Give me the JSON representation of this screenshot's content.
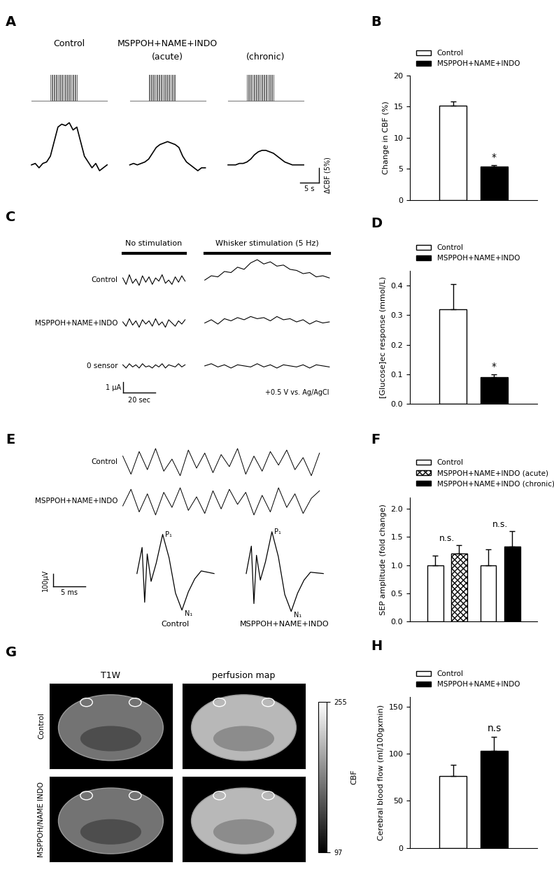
{
  "chart_data": [
    {
      "panel": "A",
      "type": "line",
      "tick_labels": false,
      "color": "#000000",
      "x": [
        0,
        1,
        2,
        3,
        4,
        5,
        6,
        7,
        8,
        9,
        10,
        11,
        12,
        13,
        14,
        15,
        16,
        17,
        18,
        19,
        20
      ],
      "group_title": "MSPPOH+NAME+INDO",
      "series": [
        {
          "name": "Control",
          "stimulus": [
            5,
            12
          ],
          "values": [
            0,
            0.5,
            -1,
            0.5,
            1,
            3,
            8,
            13,
            14,
            13.5,
            14.5,
            12,
            13,
            8,
            3,
            1,
            -1,
            0.5,
            -2,
            -1,
            0
          ]
        },
        {
          "name": "(acute)",
          "stimulus": [
            5,
            12
          ],
          "values": [
            0,
            0.5,
            0,
            0.5,
            1,
            2,
            4,
            6,
            7,
            7.5,
            8,
            7.5,
            7,
            6,
            3,
            1,
            0,
            -1,
            -2,
            -1,
            -1
          ]
        },
        {
          "name": "(chronic)",
          "stimulus": [
            5,
            12
          ],
          "values": [
            0,
            0,
            0,
            0.5,
            0.5,
            1,
            2,
            3.5,
            4.5,
            5,
            5,
            4.5,
            4,
            3,
            2,
            1,
            0.5,
            0,
            0,
            0,
            0
          ]
        }
      ],
      "scale_bar": {
        "x": 5,
        "y": 5,
        "x_label": "5 s",
        "y_label": "ΔCBF (5%)"
      }
    },
    {
      "panel": "B",
      "type": "bar",
      "ylabel": "Change in CBF (%)",
      "ylim": [
        0,
        20
      ],
      "yticks": [
        0,
        5,
        10,
        15,
        20
      ],
      "tick_labels": "y",
      "legend": "upper left",
      "series": [
        {
          "name": "Control",
          "color": "#ffffff",
          "values": [
            15.2
          ],
          "errors": [
            0.6
          ]
        },
        {
          "name": "MSPPOH+NAME+INDO",
          "color": "#000000",
          "values": [
            5.3
          ],
          "errors": [
            0.3
          ]
        }
      ],
      "annotations": [
        {
          "series": "MSPPOH+NAME+INDO",
          "text": "*"
        }
      ]
    },
    {
      "panel": "C",
      "type": "line",
      "tick_labels": false,
      "columns": [
        {
          "title": "No stimulation",
          "x": [
            0,
            2,
            4,
            6,
            8,
            10,
            12,
            14,
            16,
            18,
            20,
            22,
            24,
            26,
            28,
            30,
            32,
            34,
            36,
            38
          ]
        },
        {
          "title": "Whisker stimulation (5 Hz)",
          "x": [
            0,
            4,
            8,
            12,
            16,
            20,
            24,
            28,
            32,
            36,
            40,
            44,
            48,
            52,
            56,
            60,
            64,
            68,
            72,
            76
          ]
        }
      ],
      "series": [
        {
          "name": "Control",
          "values": [
            [
              0.2,
              -0.4,
              0.5,
              -0.3,
              0.1,
              -0.5,
              0.4,
              -0.2,
              0.3,
              -0.4,
              0.2,
              -0.1,
              0.5,
              -0.3,
              0.0,
              -0.4,
              0.3,
              -0.2,
              0.4,
              -0.1
            ],
            [
              0.0,
              0.4,
              0.3,
              0.8,
              0.7,
              1.2,
              1.0,
              1.6,
              1.9,
              1.5,
              1.7,
              1.3,
              1.4,
              1.0,
              0.9,
              0.6,
              0.7,
              0.3,
              0.4,
              0.2
            ]
          ]
        },
        {
          "name": "MSPPOH+NAME+INDO",
          "values": [
            [
              0.1,
              -0.3,
              0.4,
              -0.2,
              0.2,
              -0.4,
              0.3,
              -0.1,
              0.2,
              -0.3,
              0.4,
              -0.2,
              0.1,
              -0.4,
              0.3,
              0.0,
              -0.3,
              0.2,
              -0.1,
              0.3
            ],
            [
              0.0,
              0.3,
              -0.1,
              0.4,
              0.2,
              0.5,
              0.3,
              0.6,
              0.4,
              0.5,
              0.2,
              0.6,
              0.3,
              0.4,
              0.1,
              0.3,
              -0.1,
              0.2,
              0.0,
              0.1
            ]
          ]
        },
        {
          "name": "0 sensor",
          "values": [
            [
              0.1,
              -0.2,
              0.2,
              -0.1,
              0.1,
              -0.2,
              0.2,
              -0.1,
              0.0,
              -0.2,
              0.1,
              -0.1,
              0.2,
              -0.2,
              0.1,
              0.0,
              -0.1,
              0.2,
              -0.1,
              0.1
            ],
            [
              0.0,
              0.2,
              -0.1,
              0.1,
              -0.2,
              0.1,
              0.0,
              -0.1,
              0.2,
              -0.1,
              0.1,
              -0.2,
              0.1,
              0.0,
              -0.1,
              0.1,
              -0.2,
              0.1,
              0.0,
              -0.1
            ]
          ]
        }
      ],
      "scale_bar": {
        "x": 20,
        "y": 1,
        "x_label": "20 sec",
        "y_label": "1 µA"
      },
      "annotation": "+0.5 V vs. Ag/AgCl"
    },
    {
      "panel": "D",
      "type": "bar",
      "ylabel": "[Glucose]ec response (mmol/L)",
      "ylim": [
        0,
        0.45
      ],
      "yticks": [
        0.0,
        0.1,
        0.2,
        0.3,
        0.4
      ],
      "tick_labels": "y",
      "legend": "upper left",
      "series": [
        {
          "name": "Control",
          "color": "#ffffff",
          "values": [
            0.32
          ],
          "errors": [
            0.085
          ]
        },
        {
          "name": "MSPPOH+NAME+INDO",
          "color": "#000000",
          "values": [
            0.09
          ],
          "errors": [
            0.01
          ]
        }
      ],
      "annotations": [
        {
          "series": "MSPPOH+NAME+INDO",
          "text": "*"
        }
      ]
    },
    {
      "panel": "E",
      "type": "line",
      "tick_labels": false,
      "series": [
        {
          "name": "Control",
          "values": [
            20,
            -40,
            35,
            -25,
            45,
            -30,
            10,
            -45,
            40,
            -20,
            30,
            -35,
            25,
            -15,
            45,
            -40,
            20,
            -30,
            35,
            -10,
            40,
            -25,
            15,
            -45,
            30
          ]
        },
        {
          "name": "MSPPOH+NAME+INDO",
          "values": [
            -15,
            40,
            -35,
            25,
            -45,
            30,
            -20,
            45,
            -30,
            15,
            -40,
            35,
            -25,
            40,
            -10,
            30,
            -45,
            20,
            -35,
            45,
            -20,
            25,
            -40,
            10,
            35
          ]
        }
      ],
      "sep": {
        "x": [
          0,
          0.8,
          1.2,
          1.6,
          2.2,
          3,
          4,
          5,
          6,
          7,
          8,
          9,
          10,
          12
        ],
        "series": [
          {
            "name": "Control",
            "values": [
              0,
              200,
              -220,
              150,
              -60,
              80,
              300,
              120,
              -150,
              -280,
              -140,
              -40,
              20,
              0
            ]
          },
          {
            "name": "MSPPOH+NAME+INDO",
            "values": [
              0,
              210,
              -230,
              140,
              -50,
              90,
              320,
              130,
              -160,
              -290,
              -150,
              -50,
              10,
              0
            ]
          }
        ],
        "peak_labels": [
          "P₁",
          "N₁"
        ],
        "scale_bar": {
          "x": 5,
          "y": 100,
          "x_label": "5 ms",
          "y_label": "100µV"
        }
      }
    },
    {
      "panel": "F",
      "type": "bar",
      "ylabel": "SEP amplitude (fold change)",
      "ylim": [
        0,
        2.2
      ],
      "yticks": [
        0.0,
        0.5,
        1.0,
        1.5,
        2.0
      ],
      "tick_labels": "y",
      "legend": "upper left",
      "series": [
        {
          "name": "Control",
          "color": "#ffffff",
          "values": [
            1.0,
            1.0
          ],
          "errors": [
            0.17,
            0.28
          ]
        },
        {
          "name": "MSPPOH+NAME+INDO (acute)",
          "color": "#ffffff",
          "values": [
            1.2,
            null
          ],
          "errors": [
            0.15,
            null
          ]
        },
        {
          "name": "MSPPOH+NAME+INDO (chronic)",
          "color": "#000000",
          "values": [
            null,
            1.33
          ],
          "errors": [
            null,
            0.27
          ]
        }
      ],
      "group_annotations": [
        "n.s.",
        "n.s."
      ]
    },
    {
      "panel": "G",
      "type": "image",
      "columns": [
        "T1W",
        "perfusion map"
      ],
      "rows": [
        "Control",
        "MSPPOH/NAME INDO"
      ],
      "colorbar": {
        "label": "CBF",
        "range": [
          97,
          255
        ],
        "ticks": [
          97,
          255
        ]
      }
    },
    {
      "panel": "H",
      "type": "bar",
      "ylabel": "Cerebral blood flow (ml/100gxmin)",
      "ylim": [
        0,
        160
      ],
      "yticks": [
        0,
        50,
        100,
        150
      ],
      "tick_labels": "y",
      "legend": "upper left",
      "series": [
        {
          "name": "Control",
          "color": "#ffffff",
          "values": [
            76
          ],
          "errors": [
            12
          ]
        },
        {
          "name": "MSPPOH+NAME+INDO",
          "color": "#000000",
          "values": [
            103
          ],
          "errors": [
            15
          ]
        }
      ],
      "annotations": [
        {
          "series": "MSPPOH+NAME+INDO",
          "text": "n.s"
        }
      ]
    }
  ]
}
